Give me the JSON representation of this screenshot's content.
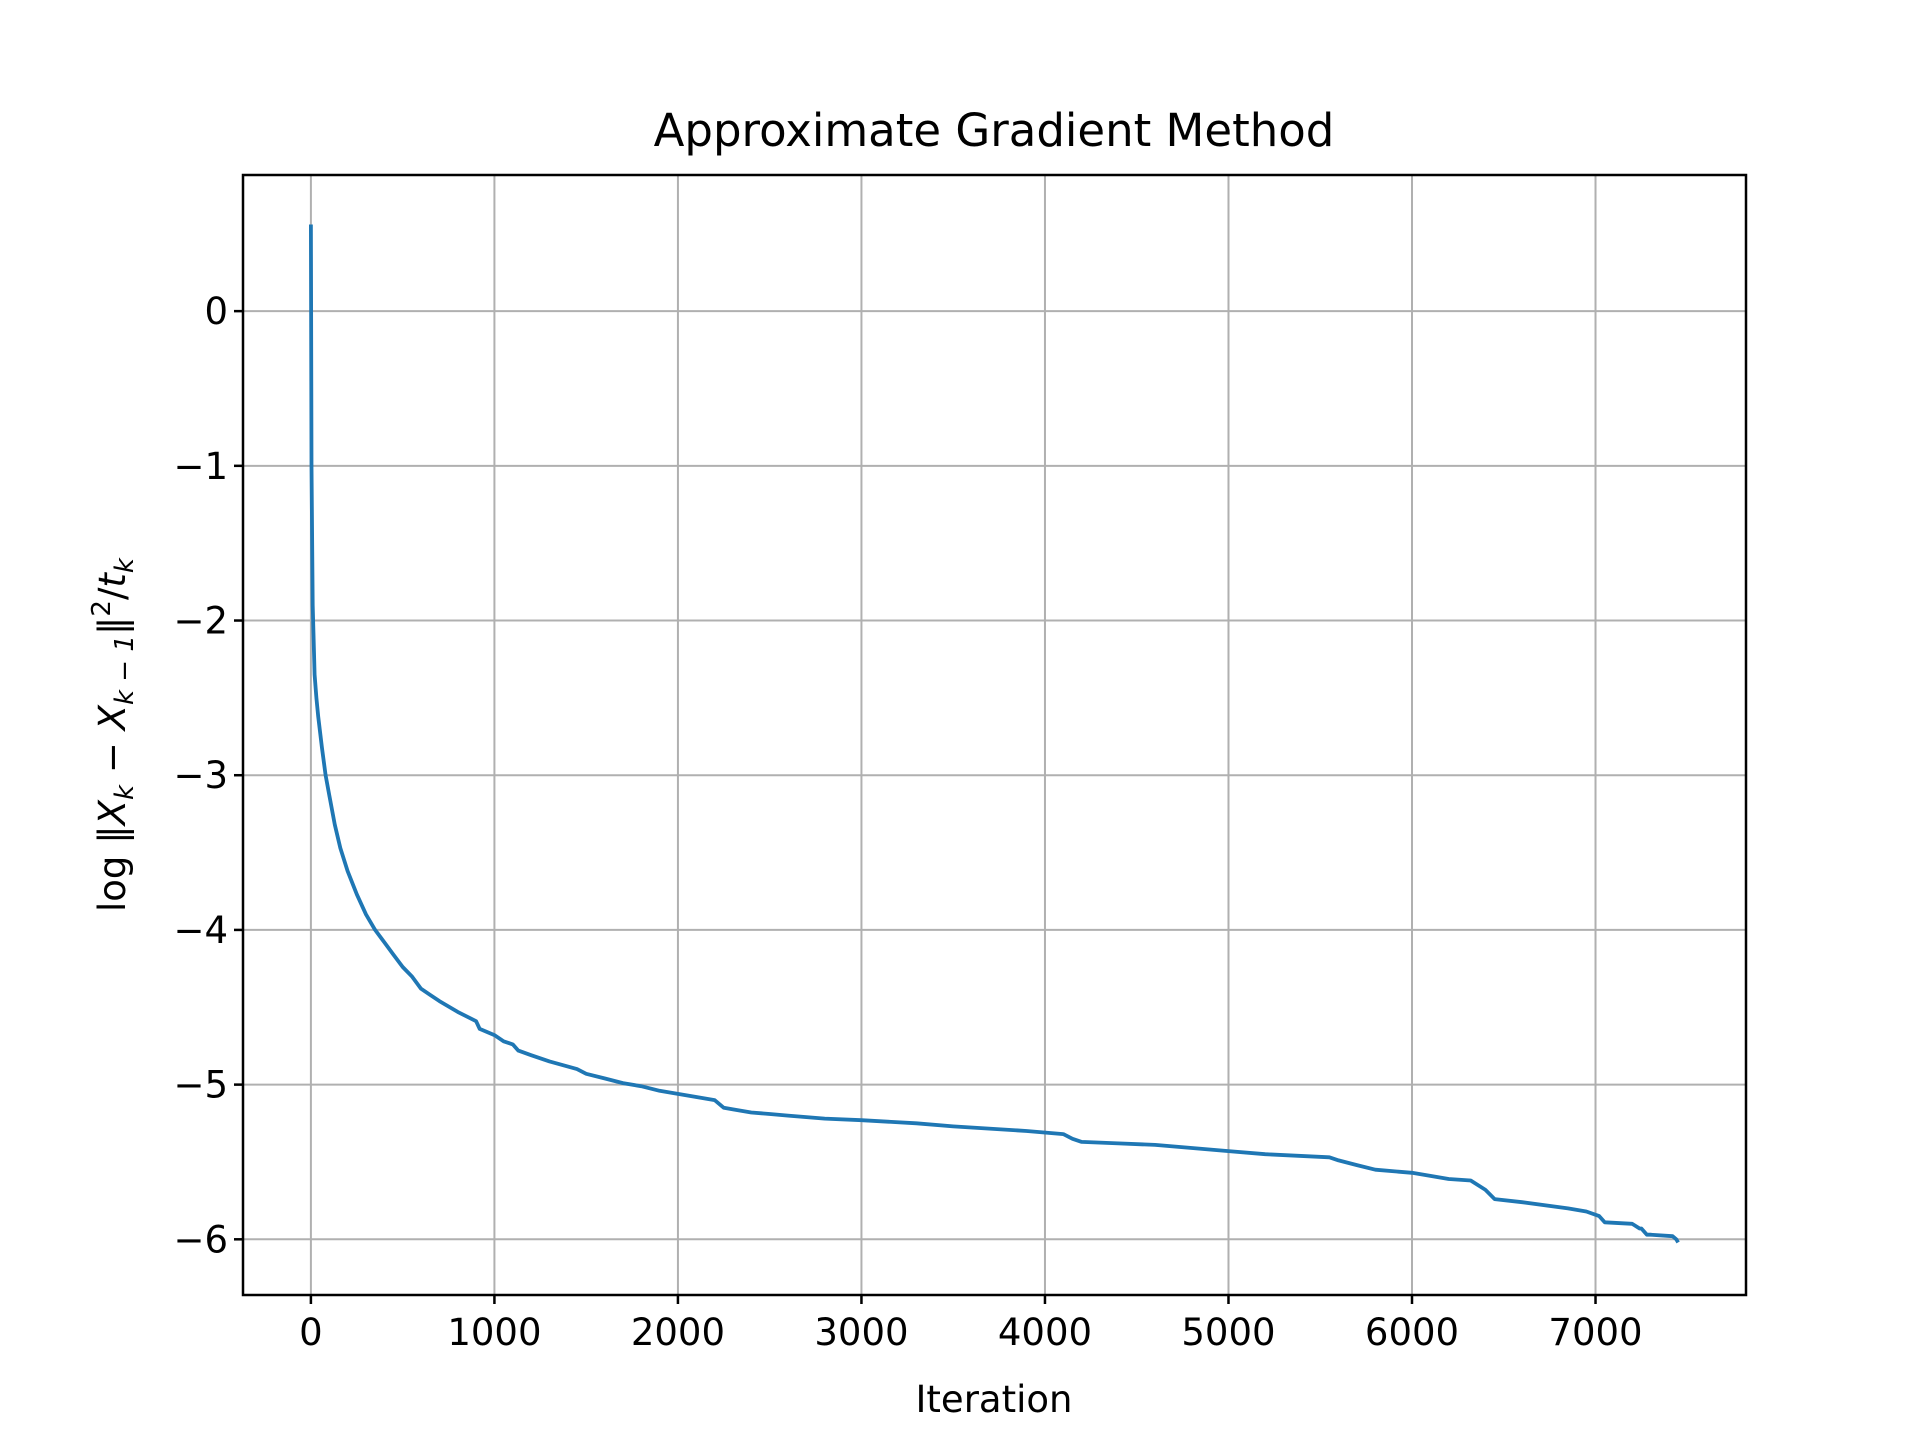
{
  "chart_data": {
    "type": "line",
    "title": "Approximate Gradient Method",
    "xlabel": "Iteration",
    "ylabel": {
      "prefix": "log ‖",
      "term1": "X",
      "sub1": "k",
      "minus": " − ",
      "term2": "X",
      "sub2": "k − 1",
      "close": "‖",
      "sup": "2",
      "slash": "/",
      "term3": "t",
      "sub3": "k"
    },
    "xlim": [
      -370,
      7820
    ],
    "ylim": [
      -6.36,
      0.88
    ],
    "xticks": [
      0,
      1000,
      2000,
      3000,
      4000,
      5000,
      6000,
      7000
    ],
    "yticks": [
      0,
      -1,
      -2,
      -3,
      -4,
      -5,
      -6
    ],
    "xtick_labels": [
      "0",
      "1000",
      "2000",
      "3000",
      "4000",
      "5000",
      "6000",
      "7000"
    ],
    "ytick_labels": [
      "0",
      "−1",
      "−2",
      "−3",
      "−4",
      "−5",
      "−6"
    ],
    "grid": true,
    "series": [
      {
        "color": "#1f77b4",
        "x": [
          0,
          3,
          10,
          20,
          30,
          40,
          60,
          80,
          100,
          130,
          160,
          200,
          250,
          300,
          350,
          400,
          450,
          500,
          550,
          600,
          650,
          700,
          800,
          900,
          920,
          1000,
          1050,
          1100,
          1130,
          1200,
          1300,
          1450,
          1500,
          1600,
          1700,
          1800,
          1900,
          2000,
          2100,
          2200,
          2250,
          2300,
          2400,
          2500,
          2600,
          2700,
          2800,
          3000,
          3300,
          3500,
          3900,
          4100,
          4150,
          4200,
          4400,
          4600,
          4800,
          5000,
          5200,
          5550,
          5600,
          5700,
          5800,
          6000,
          6100,
          6200,
          6320,
          6400,
          6450,
          6600,
          6850,
          6950,
          7020,
          7050,
          7200,
          7240,
          7250,
          7280,
          7300,
          7420,
          7440,
          7450
        ],
        "y": [
          0.56,
          -1.0,
          -1.9,
          -2.35,
          -2.5,
          -2.62,
          -2.82,
          -3.0,
          -3.13,
          -3.32,
          -3.47,
          -3.62,
          -3.77,
          -3.9,
          -4.0,
          -4.08,
          -4.16,
          -4.24,
          -4.3,
          -4.38,
          -4.42,
          -4.46,
          -4.53,
          -4.59,
          -4.64,
          -4.68,
          -4.72,
          -4.74,
          -4.78,
          -4.81,
          -4.85,
          -4.9,
          -4.93,
          -4.96,
          -4.99,
          -5.01,
          -5.04,
          -5.06,
          -5.08,
          -5.1,
          -5.15,
          -5.16,
          -5.18,
          -5.19,
          -5.2,
          -5.21,
          -5.22,
          -5.23,
          -5.25,
          -5.27,
          -5.3,
          -5.32,
          -5.35,
          -5.37,
          -5.38,
          -5.39,
          -5.41,
          -5.43,
          -5.45,
          -5.47,
          -5.49,
          -5.52,
          -5.55,
          -5.57,
          -5.59,
          -5.61,
          -5.62,
          -5.68,
          -5.74,
          -5.76,
          -5.8,
          -5.82,
          -5.85,
          -5.89,
          -5.9,
          -5.93,
          -5.93,
          -5.97,
          -5.97,
          -5.98,
          -6.0,
          -6.02
        ]
      }
    ]
  }
}
